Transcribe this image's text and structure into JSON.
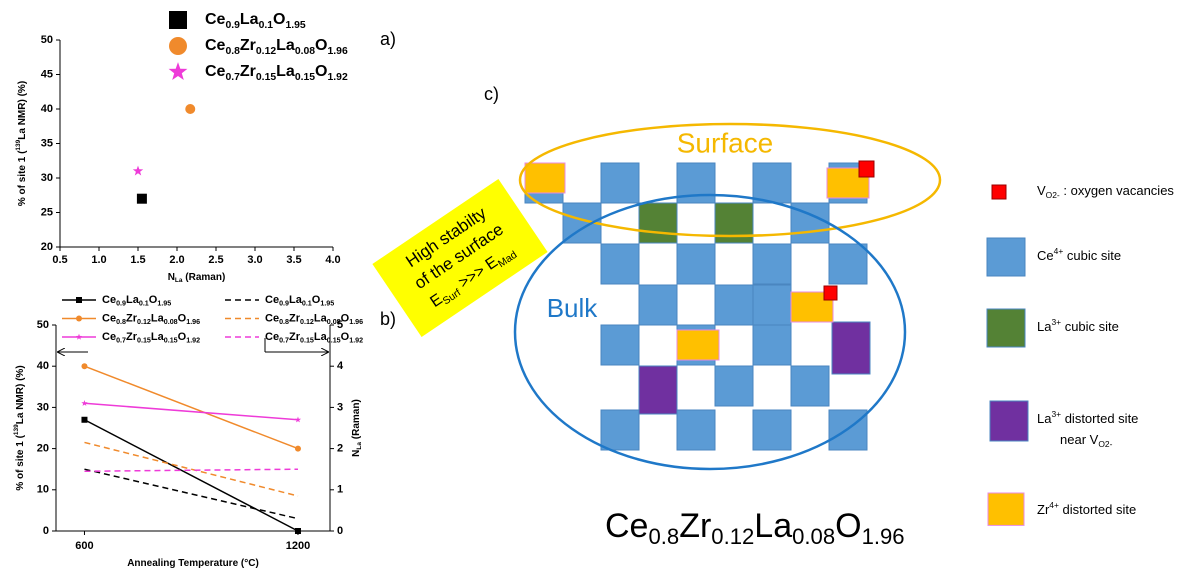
{
  "panel_labels": [
    "a)",
    "b)",
    "c)"
  ],
  "chart_data": [
    {
      "type": "scatter",
      "xlabel": [
        {
          "text": "N"
        },
        {
          "text": "La",
          "sub": true
        },
        {
          "text": " (Raman)"
        }
      ],
      "ylabel": [
        {
          "text": "% of site 1 ("
        },
        {
          "text": "139",
          "sup": true
        },
        {
          "text": "La NMR) (%)"
        }
      ],
      "xlim": [
        0.5,
        4.0
      ],
      "xticks": [
        0.5,
        {
          "value": 1,
          "label": "1.0"
        },
        1.5,
        {
          "value": 2,
          "label": "2.0"
        },
        2.5,
        {
          "value": 3,
          "label": "3.0"
        },
        3.5,
        {
          "value": 4,
          "label": "4.0"
        }
      ],
      "ylim": [
        20,
        50
      ],
      "yticks": [
        20,
        25,
        30,
        35,
        40,
        45,
        50
      ],
      "series": [
        {
          "name": "Ce0.9La0.1O1.95",
          "color": "#000000",
          "marker": "square",
          "x": [
            1.55
          ],
          "values": [
            27
          ]
        },
        {
          "name": "Ce0.8Zr0.12La0.08O1.96",
          "color": "#f08a2c",
          "marker": "circle",
          "x": [
            2.17
          ],
          "values": [
            40
          ]
        },
        {
          "name": "Ce0.7Zr0.15La0.15O1.92",
          "color": "#ee3bd8",
          "marker": "star",
          "x": [
            1.5
          ],
          "values": [
            31
          ]
        }
      ]
    },
    {
      "type": "line",
      "xlabel": [
        {
          "text": "Annealing Temperature (°C)"
        }
      ],
      "ylabel": [
        {
          "text": "% of site 1 ("
        },
        {
          "text": "139",
          "sup": true
        },
        {
          "text": "La NMR) (%)"
        }
      ],
      "y2label": [
        {
          "text": "N"
        },
        {
          "text": "La",
          "sub": true
        },
        {
          "text": " (Raman)"
        }
      ],
      "x": [
        600,
        1200
      ],
      "xlim": [
        520,
        1290
      ],
      "xticks": [
        600,
        1200
      ],
      "ylim": [
        0,
        50
      ],
      "yticks": [
        0,
        10,
        20,
        30,
        40,
        50
      ],
      "y2lim": [
        0,
        5
      ],
      "y2ticks": [
        0,
        1,
        2,
        3,
        4,
        5
      ],
      "series": [
        {
          "name": "Ce0.9La0.1O1.95",
          "color": "#000000",
          "marker": "square",
          "values": [
            27,
            0
          ]
        },
        {
          "name": "Ce0.8Zr0.12La0.08O1.96",
          "color": "#f08a2c",
          "marker": "circle",
          "values": [
            40,
            20
          ]
        },
        {
          "name": "Ce0.7Zr0.15La0.15O1.92",
          "color": "#ee3bd8",
          "marker": "star",
          "values": [
            31,
            27
          ]
        },
        {
          "name": "Ce0.9La0.1O1.95",
          "color": "#000000",
          "dash": true,
          "axis": "y2",
          "values": [
            1.5,
            0.3
          ]
        },
        {
          "name": "Ce0.8Zr0.12La0.08O1.96",
          "color": "#f08a2c",
          "dash": true,
          "axis": "y2",
          "values": [
            2.15,
            0.85
          ]
        },
        {
          "name": "Ce0.7Zr0.15La0.15O1.92",
          "color": "#ee3bd8",
          "dash": true,
          "axis": "y2",
          "values": [
            1.45,
            1.5
          ]
        }
      ]
    }
  ],
  "diagram": {
    "surface_label": "Surface",
    "bulk_label": "Bulk",
    "note": [
      "High stabilty",
      "of the surface"
    ],
    "energy": [
      {
        "text": "E"
      },
      {
        "text": "Surf",
        "sub": true
      },
      {
        "text": " >>> E"
      },
      {
        "text": "Mad",
        "sub": true
      }
    ],
    "formula": "Ce0.8Zr0.12La0.08O1.96",
    "legend": [
      {
        "color": "#ff0000",
        "label": [
          [
            {
              "text": "V"
            },
            {
              "text": "O2-",
              "sub": true
            },
            {
              "text": " : oxygen vacancies"
            }
          ]
        ]
      },
      {
        "color": "#5b9bd5",
        "label": [
          [
            {
              "text": "Ce"
            },
            {
              "text": "4+",
              "sup": true
            },
            {
              "text": " cubic site"
            }
          ]
        ]
      },
      {
        "color": "#548235",
        "label": [
          [
            {
              "text": "La"
            },
            {
              "text": "3+",
              "sup": true
            },
            {
              "text": " cubic site"
            }
          ]
        ]
      },
      {
        "color": "#7030a0",
        "label": [
          [
            {
              "text": "La"
            },
            {
              "text": "3+",
              "sup": true
            },
            {
              "text": " distorted site"
            }
          ],
          [
            {
              "text": "near V"
            },
            {
              "text": "O2-",
              "sub": true
            }
          ]
        ]
      },
      {
        "color": "#ffc000",
        "label": [
          [
            {
              "text": "Zr"
            },
            {
              "text": "4+",
              "sup": true
            },
            {
              "text": " distorted site"
            }
          ]
        ]
      }
    ]
  }
}
